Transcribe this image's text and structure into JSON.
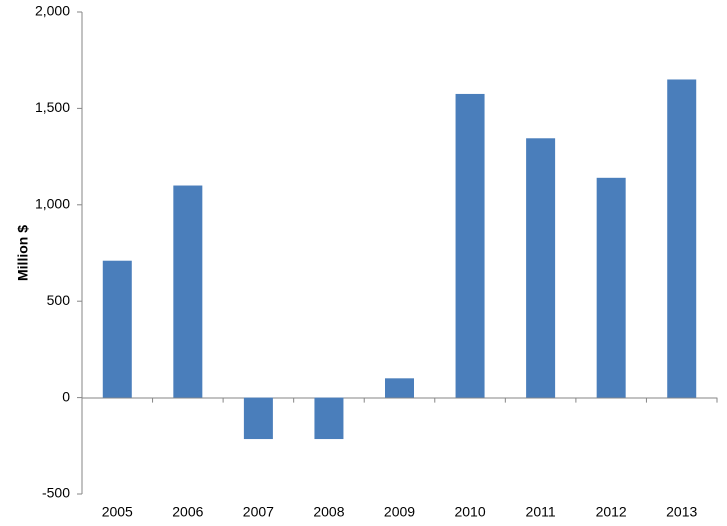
{
  "chart_data": {
    "type": "bar",
    "title": "",
    "xlabel": "",
    "ylabel": "Million $",
    "categories": [
      "2005",
      "2006",
      "2007",
      "2008",
      "2009",
      "2010",
      "2011",
      "2012",
      "2013"
    ],
    "series": [
      {
        "values": [
          710,
          1100,
          -215,
          -215,
          100,
          1575,
          1345,
          1140,
          1650
        ],
        "color": "#4a7ebb"
      }
    ],
    "ylim": [
      -500,
      2000
    ],
    "yticks": [
      -500,
      0,
      500,
      1000,
      1500,
      2000
    ],
    "ytick_labels": [
      "-500",
      "0",
      "500",
      "1,000",
      "1,500",
      "2,000"
    ],
    "grid": false,
    "legend": "none"
  }
}
